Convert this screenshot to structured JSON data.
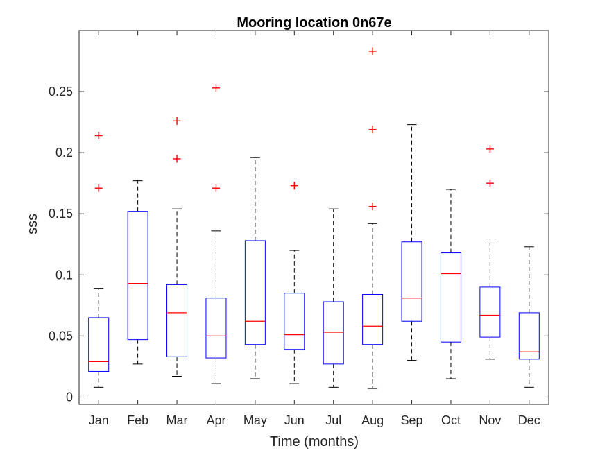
{
  "chart_data": {
    "type": "box",
    "title": "Mooring location 0n67e",
    "xlabel": "Time (months)",
    "ylabel": "sss",
    "ylim": [
      -0.006,
      0.3
    ],
    "yticks": [
      0,
      0.05,
      0.1,
      0.15,
      0.2,
      0.25
    ],
    "ytick_labels": [
      "0",
      "0.05",
      "0.1",
      "0.15",
      "0.2",
      "0.25"
    ],
    "grid": false,
    "colors": {
      "box": "#0000ff",
      "median": "#ff0000",
      "whisker": "#000000",
      "outlier": "#ff0000",
      "axis": "#262626"
    },
    "categories": [
      "Jan",
      "Feb",
      "Mar",
      "Apr",
      "May",
      "Jun",
      "Jul",
      "Aug",
      "Sep",
      "Oct",
      "Nov",
      "Dec"
    ],
    "boxes": [
      {
        "whisker_low": 0.008,
        "q1": 0.021,
        "median": 0.029,
        "q3": 0.065,
        "whisker_high": 0.089,
        "outliers": [
          0.171,
          0.214
        ]
      },
      {
        "whisker_low": 0.027,
        "q1": 0.047,
        "median": 0.093,
        "q3": 0.152,
        "whisker_high": 0.177,
        "outliers": []
      },
      {
        "whisker_low": 0.017,
        "q1": 0.033,
        "median": 0.069,
        "q3": 0.092,
        "whisker_high": 0.154,
        "outliers": [
          0.195,
          0.226
        ]
      },
      {
        "whisker_low": 0.011,
        "q1": 0.032,
        "median": 0.05,
        "q3": 0.081,
        "whisker_high": 0.136,
        "outliers": [
          0.171,
          0.253
        ]
      },
      {
        "whisker_low": 0.015,
        "q1": 0.043,
        "median": 0.062,
        "q3": 0.128,
        "whisker_high": 0.196,
        "outliers": []
      },
      {
        "whisker_low": 0.011,
        "q1": 0.039,
        "median": 0.051,
        "q3": 0.085,
        "whisker_high": 0.12,
        "outliers": [
          0.173
        ]
      },
      {
        "whisker_low": 0.008,
        "q1": 0.027,
        "median": 0.053,
        "q3": 0.078,
        "whisker_high": 0.154,
        "outliers": []
      },
      {
        "whisker_low": 0.007,
        "q1": 0.043,
        "median": 0.058,
        "q3": 0.084,
        "whisker_high": 0.142,
        "outliers": [
          0.156,
          0.219,
          0.283
        ]
      },
      {
        "whisker_low": 0.03,
        "q1": 0.062,
        "median": 0.081,
        "q3": 0.127,
        "whisker_high": 0.223,
        "outliers": []
      },
      {
        "whisker_low": 0.015,
        "q1": 0.045,
        "median": 0.101,
        "q3": 0.118,
        "whisker_high": 0.17,
        "outliers": []
      },
      {
        "whisker_low": 0.031,
        "q1": 0.049,
        "median": 0.067,
        "q3": 0.09,
        "whisker_high": 0.126,
        "outliers": [
          0.175,
          0.203
        ]
      },
      {
        "whisker_low": 0.008,
        "q1": 0.031,
        "median": 0.037,
        "q3": 0.069,
        "whisker_high": 0.123,
        "outliers": []
      }
    ]
  }
}
